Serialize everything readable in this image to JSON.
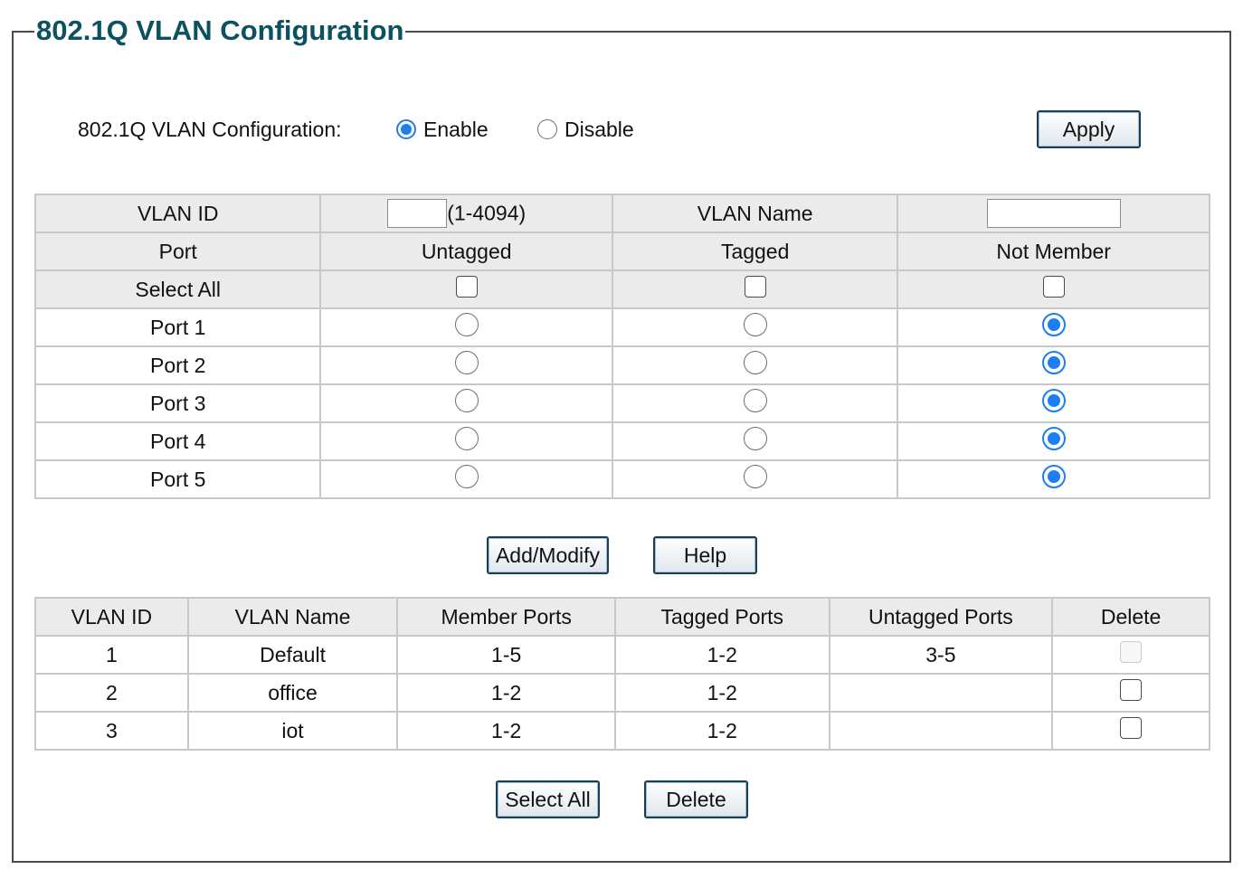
{
  "page": {
    "title": "802.1Q VLAN Configuration"
  },
  "config": {
    "label": "802.1Q VLAN Configuration:",
    "enable_label": "Enable",
    "disable_label": "Disable",
    "selected": "Enable",
    "apply_label": "Apply"
  },
  "form": {
    "vlan_id_label": "VLAN ID",
    "vlan_id_value": "",
    "vlan_id_range": "(1-4094)",
    "vlan_name_label": "VLAN Name",
    "vlan_name_value": "",
    "headers": [
      "Port",
      "Untagged",
      "Tagged",
      "Not Member"
    ],
    "select_all_label": "Select All",
    "ports": [
      {
        "name": "Port 1",
        "selection": "Not Member"
      },
      {
        "name": "Port 2",
        "selection": "Not Member"
      },
      {
        "name": "Port 3",
        "selection": "Not Member"
      },
      {
        "name": "Port 4",
        "selection": "Not Member"
      },
      {
        "name": "Port 5",
        "selection": "Not Member"
      }
    ],
    "add_modify_label": "Add/Modify",
    "help_label": "Help"
  },
  "vlan_table": {
    "headers": [
      "VLAN ID",
      "VLAN Name",
      "Member Ports",
      "Tagged Ports",
      "Untagged Ports",
      "Delete"
    ],
    "rows": [
      {
        "id": "1",
        "name": "Default",
        "member": "1-5",
        "tagged": "1-2",
        "untagged": "3-5",
        "delete_disabled": true
      },
      {
        "id": "2",
        "name": "office",
        "member": "1-2",
        "tagged": "1-2",
        "untagged": "",
        "delete_disabled": false
      },
      {
        "id": "3",
        "name": "iot",
        "member": "1-2",
        "tagged": "1-2",
        "untagged": "",
        "delete_disabled": false
      }
    ],
    "select_all_label": "Select All",
    "delete_label": "Delete"
  },
  "colors": {
    "title": "#0c5160",
    "radio_on": "#1c7ef0",
    "header_bg": "#ebebeb"
  }
}
